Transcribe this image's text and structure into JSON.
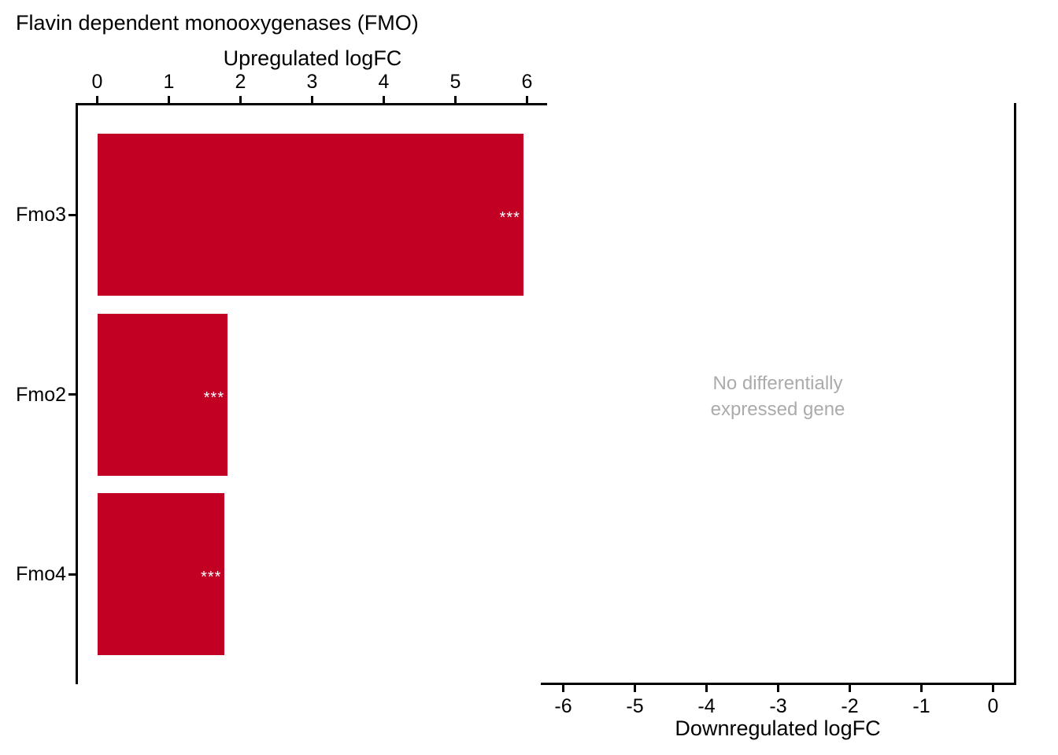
{
  "figure": {
    "title": "Flavin dependent monooxygenases (FMO)"
  },
  "chart_data": {
    "type": "bar",
    "orientation": "horizontal",
    "categories": [
      "Fmo3",
      "Fmo2",
      "Fmo4"
    ],
    "panels": [
      {
        "name": "upregulated",
        "axis_label": "Upregulated logFC",
        "axis_side": "top",
        "ticks": [
          0,
          1,
          2,
          3,
          4,
          5,
          6
        ],
        "xlim": [
          -0.3,
          6.3
        ],
        "values": [
          5.95,
          1.82,
          1.78
        ],
        "significance": [
          "***",
          "***",
          "***"
        ]
      },
      {
        "name": "downregulated",
        "axis_label": "Downregulated logFC",
        "axis_side": "bottom",
        "ticks": [
          -6,
          -5,
          -4,
          -3,
          -2,
          -1,
          0
        ],
        "xlim": [
          -6.3,
          0.3
        ],
        "values": [],
        "significance": [],
        "empty_message_lines": [
          "No differentially",
          "expressed gene"
        ]
      }
    ],
    "grid": "off",
    "legend": "none",
    "bar_color": "#C20023",
    "sig_color": "#FFFFFF",
    "muted_text_color": "#ABABAB",
    "axis_color": "#000000"
  }
}
